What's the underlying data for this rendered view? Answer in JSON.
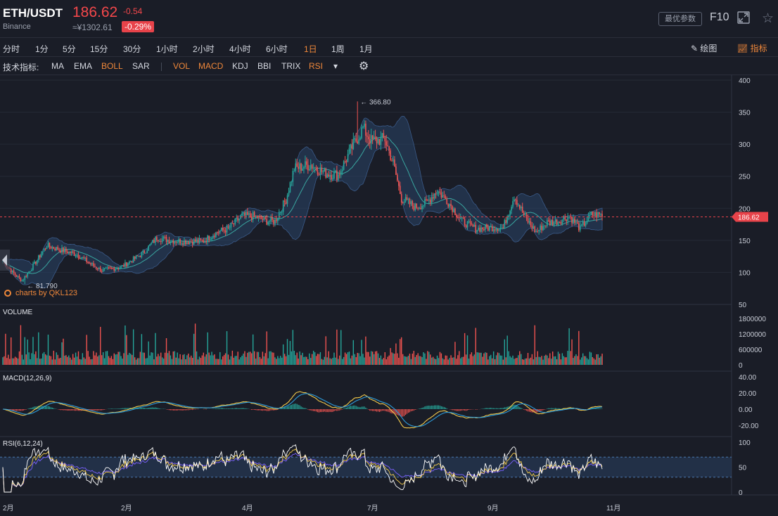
{
  "header": {
    "pair": "ETH/USDT",
    "exchange": "Binance",
    "price": "186.62",
    "cny": "≈¥1302.61",
    "change": "-0.54",
    "change_pct": "-0.29%",
    "optimal_btn": "最优参数",
    "f10": "F10"
  },
  "timeframes": [
    {
      "label": "分时"
    },
    {
      "label": "1分"
    },
    {
      "label": "5分"
    },
    {
      "label": "15分"
    },
    {
      "label": "30分"
    },
    {
      "label": "1小时"
    },
    {
      "label": "2小时"
    },
    {
      "label": "4小时"
    },
    {
      "label": "6小时"
    },
    {
      "label": "1日",
      "active": true
    },
    {
      "label": "1周"
    },
    {
      "label": "1月"
    }
  ],
  "tools": {
    "draw": "绘图",
    "indicators": "指标"
  },
  "indicator_bar": {
    "title": "技术指标:",
    "main": [
      {
        "label": "MA"
      },
      {
        "label": "EMA"
      },
      {
        "label": "BOLL",
        "active": true
      },
      {
        "label": "SAR"
      }
    ],
    "sub": [
      {
        "label": "VOL",
        "active": true
      },
      {
        "label": "MACD",
        "active": true
      },
      {
        "label": "KDJ"
      },
      {
        "label": "BBI"
      },
      {
        "label": "TRIX"
      },
      {
        "label": "RSI",
        "active": true
      }
    ]
  },
  "watermark": "charts by QKL123",
  "colors": {
    "up": "#26a69a",
    "down": "#ef5350",
    "accent": "#f0883a",
    "boll_fill": "#2a4468",
    "dif": "#f2c94c",
    "dea": "#2d9cdb",
    "rsi6": "#ffffff",
    "rsi12": "#f2c94c",
    "rsi24": "#7b61ff"
  },
  "chart_data": {
    "type": "candlestick",
    "x_ticks": [
      "2月",
      "2月",
      "4月",
      "7月",
      "9月",
      "11月"
    ],
    "y_ticks": [
      "400",
      "350",
      "300",
      "250",
      "200",
      "150",
      "100",
      "50"
    ],
    "ylim": [
      50,
      400
    ],
    "high_marker": "366.80",
    "low_marker": "81.790",
    "last_price": "186.62",
    "anchors": [
      [
        0,
        118
      ],
      [
        8,
        98
      ],
      [
        14,
        87
      ],
      [
        22,
        110
      ],
      [
        32,
        142
      ],
      [
        42,
        135
      ],
      [
        54,
        128
      ],
      [
        64,
        113
      ],
      [
        72,
        103
      ],
      [
        86,
        108
      ],
      [
        102,
        130
      ],
      [
        112,
        154
      ],
      [
        122,
        150
      ],
      [
        134,
        148
      ],
      [
        146,
        149
      ],
      [
        156,
        163
      ],
      [
        164,
        168
      ],
      [
        174,
        188
      ],
      [
        182,
        188
      ],
      [
        192,
        180
      ],
      [
        198,
        180
      ],
      [
        206,
        214
      ],
      [
        212,
        262
      ],
      [
        224,
        268
      ],
      [
        234,
        255
      ],
      [
        244,
        252
      ],
      [
        254,
        295
      ],
      [
        262,
        325
      ],
      [
        268,
        305
      ],
      [
        278,
        308
      ],
      [
        284,
        270
      ],
      [
        290,
        215
      ],
      [
        300,
        202
      ],
      [
        308,
        208
      ],
      [
        316,
        228
      ],
      [
        324,
        210
      ],
      [
        334,
        180
      ],
      [
        344,
        168
      ],
      [
        356,
        170
      ],
      [
        364,
        170
      ],
      [
        372,
        220
      ],
      [
        380,
        185
      ],
      [
        388,
        163
      ],
      [
        396,
        178
      ],
      [
        404,
        180
      ],
      [
        412,
        188
      ],
      [
        420,
        168
      ],
      [
        428,
        190
      ],
      [
        436,
        190
      ]
    ],
    "volume": {
      "label": "VOLUME",
      "ticks": [
        "1800000",
        "1200000",
        "600000",
        "0"
      ]
    },
    "macd": {
      "label": "MACD(12,26,9)",
      "ticks": [
        "40.00",
        "20.00",
        "0.00",
        "-20.00"
      ]
    },
    "rsi": {
      "label": "RSI(6,12,24)",
      "ticks": [
        "100",
        "50",
        "0"
      ]
    }
  }
}
